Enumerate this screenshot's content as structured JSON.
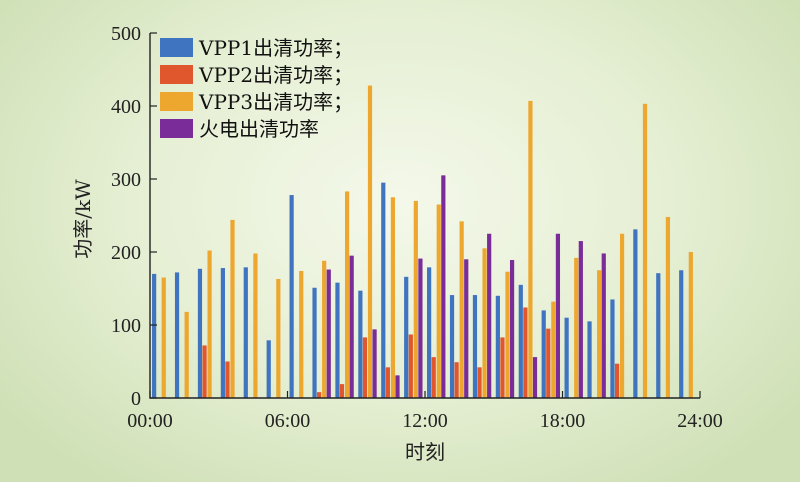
{
  "chart_data": {
    "type": "bar",
    "xlabel": "时刻",
    "ylabel": "功率/kW",
    "xlim": [
      0,
      24
    ],
    "ylim": [
      0,
      500
    ],
    "x_ticks": [
      "00:00",
      "06:00",
      "12:00",
      "18:00",
      "24:00"
    ],
    "y_ticks": [
      "0",
      "100",
      "200",
      "300",
      "400",
      "500"
    ],
    "grid": false,
    "legend_position": "top-left",
    "categories": [
      "1",
      "2",
      "3",
      "4",
      "5",
      "6",
      "7",
      "8",
      "9",
      "10",
      "11",
      "12",
      "13",
      "14",
      "15",
      "16",
      "17",
      "18",
      "19",
      "20",
      "21",
      "22",
      "23",
      "24"
    ],
    "series": [
      {
        "name": "VPP1出清功率；",
        "color": "#3f74c0",
        "values": [
          170,
          172,
          177,
          178,
          179,
          79,
          278,
          151,
          158,
          147,
          295,
          166,
          179,
          141,
          141,
          140,
          155,
          120,
          110,
          105,
          135,
          231,
          171,
          175
        ]
      },
      {
        "name": "VPP2出清功率；",
        "color": "#e0562d",
        "values": [
          0,
          0,
          72,
          50,
          0,
          0,
          0,
          8,
          19,
          83,
          42,
          87,
          56,
          49,
          42,
          83,
          124,
          95,
          0,
          0,
          47,
          0,
          0,
          0
        ]
      },
      {
        "name": "VPP3出清功率；",
        "color": "#eda72e",
        "values": [
          165,
          118,
          202,
          244,
          198,
          163,
          174,
          188,
          283,
          428,
          275,
          270,
          265,
          242,
          205,
          173,
          407,
          132,
          192,
          175,
          225,
          403,
          248,
          200
        ]
      },
      {
        "name": "火电出清功率",
        "color": "#7a2d98",
        "values": [
          0,
          0,
          0,
          0,
          0,
          0,
          0,
          176,
          195,
          94,
          31,
          191,
          305,
          190,
          225,
          189,
          56,
          225,
          215,
          198,
          0,
          0,
          0,
          0
        ]
      }
    ]
  }
}
